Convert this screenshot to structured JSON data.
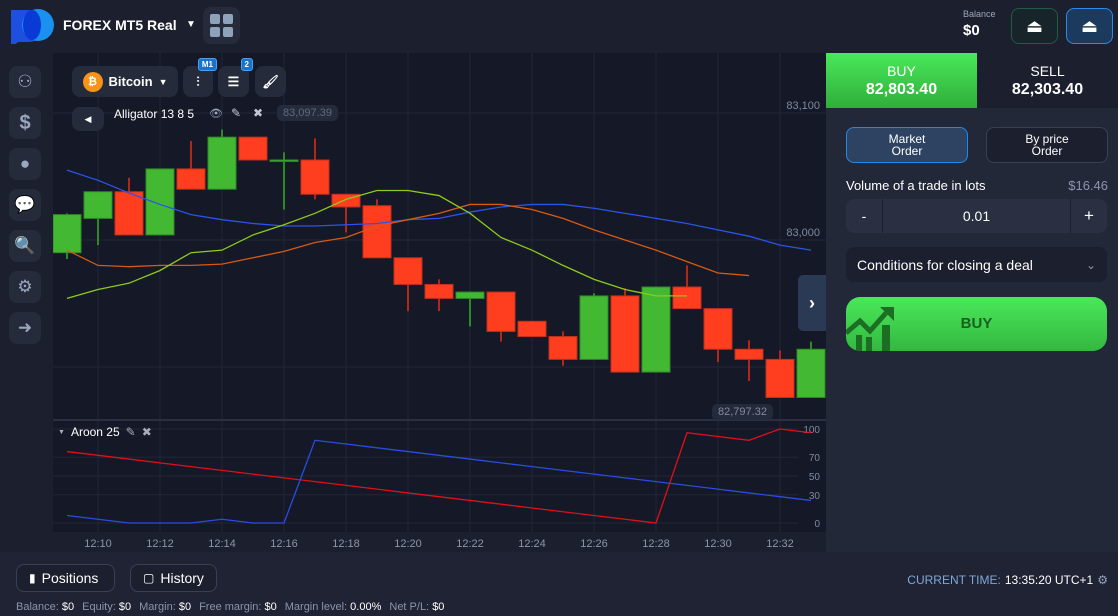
{
  "header": {
    "account": "FOREX MT5 Real",
    "balance_label": "Balance",
    "balance": "$0"
  },
  "sidebar": {
    "items": [
      {
        "icon": "brain-icon"
      },
      {
        "icon": "dollar-icon"
      },
      {
        "icon": "user-icon"
      },
      {
        "icon": "chat-icon"
      },
      {
        "icon": "search-chart-icon"
      },
      {
        "icon": "gear-icon"
      },
      {
        "icon": "logout-icon"
      }
    ]
  },
  "toolbar": {
    "asset": "Bitcoin",
    "timeframe_badge": "M1",
    "indicators_badge": "2"
  },
  "indicator_main": {
    "label": "Alligator 13 8 5"
  },
  "indicator_sub": {
    "label": "Aroon 25"
  },
  "price_labels": {
    "top_marker": "83,097.39",
    "bottom_marker": "82,797.32"
  },
  "colors": {
    "up": "#43b833",
    "down": "#ff3d1f",
    "jaw": "#2a55e8",
    "teeth": "#d65a12",
    "lips": "#8ccc1a",
    "aroon_up": "#e0101a",
    "aroon_down": "#2a4de0",
    "accent_green": "#44e35a"
  },
  "chart_data": [
    {
      "type": "candlestick",
      "yticks": [
        {
          "v": 83100,
          "label": "83,100"
        },
        {
          "v": 83000,
          "label": "83,000"
        },
        {
          "v": 82900,
          "label": ""
        }
      ],
      "x": [
        "12:09",
        "12:10",
        "12:11",
        "12:12",
        "12:13",
        "12:14",
        "12:15",
        "12:16",
        "12:17",
        "12:18",
        "12:19",
        "12:20",
        "12:21",
        "12:22",
        "12:23",
        "12:24",
        "12:25",
        "12:26",
        "12:27",
        "12:28",
        "12:29",
        "12:30",
        "12:31",
        "12:32",
        "12:33"
      ],
      "xtick_labels": [
        "12:10",
        "12:12",
        "12:14",
        "12:16",
        "12:18",
        "12:20",
        "12:22",
        "12:24",
        "12:26",
        "12:28",
        "12:30",
        "12:32"
      ],
      "ohlc": [
        [
          82990,
          83021,
          82985,
          83020
        ],
        [
          83017,
          83038,
          82996,
          83038
        ],
        [
          83038,
          83049,
          83004,
          83004
        ],
        [
          83004,
          83056,
          83004,
          83056
        ],
        [
          83056,
          83078,
          83040,
          83040
        ],
        [
          83040,
          83087,
          83040,
          83081
        ],
        [
          83081,
          83081,
          83063,
          83063
        ],
        [
          83063,
          83069,
          83024,
          83063
        ],
        [
          83063,
          83080,
          83032,
          83036
        ],
        [
          83036,
          83036,
          83006,
          83026
        ],
        [
          83027,
          83032,
          82986,
          82986
        ],
        [
          82986,
          82986,
          82944,
          82965
        ],
        [
          82965,
          82969,
          82944,
          82954
        ],
        [
          82954,
          82959,
          82932,
          82959
        ],
        [
          82959,
          82959,
          82920,
          82928
        ],
        [
          82936,
          82936,
          82924,
          82924
        ],
        [
          82924,
          82928,
          82901,
          82906
        ],
        [
          82906,
          82958,
          82906,
          82956
        ],
        [
          82956,
          82962,
          82896,
          82896
        ],
        [
          82896,
          82963,
          82896,
          82963
        ],
        [
          82963,
          82980,
          82946,
          82946
        ],
        [
          82946,
          82946,
          82904,
          82914
        ],
        [
          82914,
          82921,
          82889,
          82906
        ],
        [
          82906,
          82913,
          82876,
          82876
        ],
        [
          82876,
          82920,
          82876,
          82914
        ]
      ],
      "alligator": {
        "jaw": [
          83055,
          83047,
          83037,
          83028,
          83020,
          83016,
          83013,
          83011,
          83011,
          83012,
          83013,
          83016,
          83017,
          83022,
          83026,
          83028,
          83028,
          83025,
          83021,
          83017,
          83013,
          83008,
          83003,
          82996,
          82992
        ],
        "teeth": [
          82992,
          82980,
          82979,
          82980,
          82980,
          82981,
          82986,
          82991,
          82998,
          83002,
          83011,
          83016,
          83021,
          83028,
          83028,
          83024,
          83017,
          83008,
          83000,
          82992,
          82983,
          82974,
          82972
        ],
        "lips": [
          82954,
          82961,
          82966,
          82976,
          82990,
          82992,
          83004,
          83012,
          83021,
          83032,
          83039,
          83039,
          83035,
          83021,
          83002,
          82992,
          82980,
          82969,
          82961,
          82956,
          82956
        ]
      }
    },
    {
      "type": "line",
      "yticks": [
        100,
        70,
        50,
        30,
        0
      ],
      "ylim": [
        0,
        100
      ],
      "series": [
        {
          "key": "aroon_up",
          "values": [
            76,
            72,
            68,
            64,
            60,
            56,
            52,
            48,
            44,
            40,
            36,
            32,
            28,
            24,
            20,
            16,
            12,
            8,
            4,
            0,
            96,
            92,
            88,
            100,
            96
          ]
        },
        {
          "key": "aroon_down",
          "values": [
            8,
            4,
            0,
            0,
            0,
            4,
            0,
            0,
            88,
            84,
            80,
            76,
            72,
            68,
            64,
            60,
            56,
            52,
            48,
            44,
            40,
            36,
            32,
            28,
            24
          ]
        }
      ]
    }
  ],
  "trade": {
    "buy_label": "BUY",
    "buy_price": "82,803.40",
    "sell_label": "SELL",
    "sell_price": "82,303.40",
    "market_order": "Market\nOrder",
    "by_price_order": "By price\nOrder",
    "volume_label": "Volume of a trade in lots",
    "volume_cost": "$16.46",
    "minus": "-",
    "volume": "0.01",
    "plus": "+",
    "conditions": "Conditions for closing a deal",
    "buy_button": "BUY"
  },
  "footer": {
    "positions": "Positions",
    "history": "History",
    "time_label": "CURRENT TIME:",
    "time": "13:35:20 UTC+1",
    "stats": [
      {
        "k": "Balance:",
        "v": "$0"
      },
      {
        "k": "Equity:",
        "v": "$0"
      },
      {
        "k": "Margin:",
        "v": "$0"
      },
      {
        "k": "Free margin:",
        "v": "$0"
      },
      {
        "k": "Margin level:",
        "v": "0.00%"
      },
      {
        "k": "Net P/L:",
        "v": "$0"
      }
    ]
  }
}
